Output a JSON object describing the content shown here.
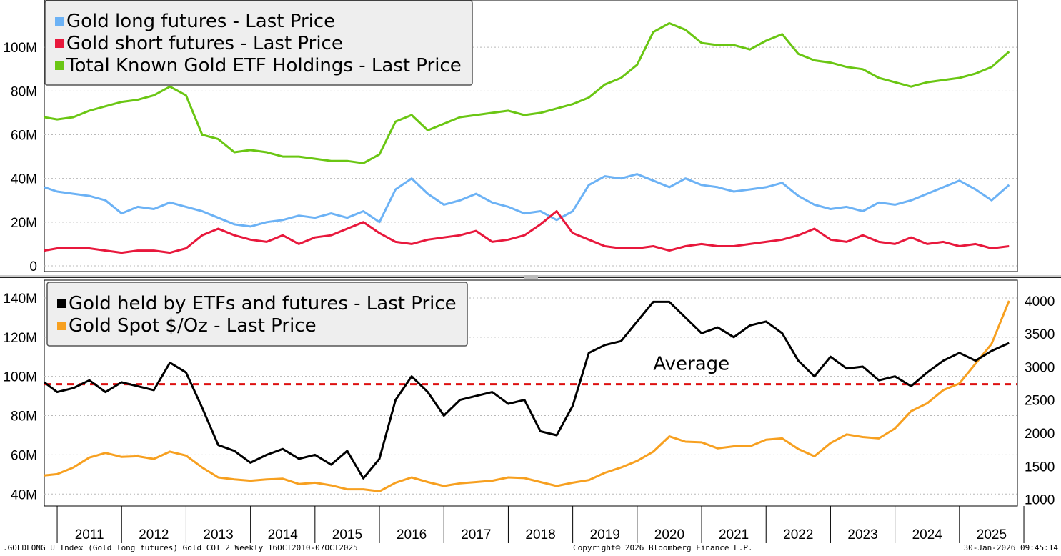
{
  "footer": {
    "left": ".GOLDLONG U Index (Gold long futures) Gold COT 2 Weekly 16OCT2010-07OCT2025",
    "center": "Copyright© 2026 Bloomberg Finance L.P.",
    "right": "30-Jan-2026 09:45:14"
  },
  "years": [
    "2011",
    "2012",
    "2013",
    "2014",
    "2015",
    "2016",
    "2017",
    "2018",
    "2019",
    "2020",
    "2021",
    "2022",
    "2023",
    "2024",
    "2025"
  ],
  "colors": {
    "long": "#6cb2f5",
    "short": "#e8183c",
    "etf": "#6ac613",
    "total": "#000000",
    "spot": "#f7a020",
    "avg": "#dd1111"
  },
  "chart_data": [
    {
      "type": "line",
      "title": "",
      "xlabel": "",
      "ylabel": "",
      "ylim": [
        0,
        120
      ],
      "y_unit": "M",
      "yticks": [
        "0",
        "20M",
        "40M",
        "60M",
        "80M",
        "100M"
      ],
      "legend_position": "top-left",
      "x": [
        2010.8,
        2011.0,
        2011.25,
        2011.5,
        2011.75,
        2012.0,
        2012.25,
        2012.5,
        2012.75,
        2013.0,
        2013.25,
        2013.5,
        2013.75,
        2014.0,
        2014.25,
        2014.5,
        2014.75,
        2015.0,
        2015.25,
        2015.5,
        2015.75,
        2016.0,
        2016.25,
        2016.5,
        2016.75,
        2017.0,
        2017.25,
        2017.5,
        2017.75,
        2018.0,
        2018.25,
        2018.5,
        2018.75,
        2019.0,
        2019.25,
        2019.5,
        2019.75,
        2020.0,
        2020.25,
        2020.5,
        2020.75,
        2021.0,
        2021.25,
        2021.5,
        2021.75,
        2022.0,
        2022.25,
        2022.5,
        2022.75,
        2023.0,
        2023.25,
        2023.5,
        2023.75,
        2024.0,
        2024.25,
        2024.5,
        2024.75,
        2025.0,
        2025.25,
        2025.5,
        2025.77
      ],
      "series": [
        {
          "name": "Gold long futures - Last Price",
          "color": "#6cb2f5",
          "values": [
            36,
            34,
            33,
            32,
            30,
            24,
            27,
            26,
            29,
            27,
            25,
            22,
            19,
            18,
            20,
            21,
            23,
            22,
            24,
            22,
            25,
            20,
            35,
            40,
            33,
            28,
            30,
            33,
            29,
            27,
            24,
            25,
            21,
            25,
            37,
            41,
            40,
            42,
            39,
            36,
            40,
            37,
            36,
            34,
            35,
            36,
            38,
            32,
            28,
            26,
            27,
            25,
            29,
            28,
            30,
            33,
            36,
            39,
            35,
            30,
            37
          ]
        },
        {
          "name": "Gold short futures - Last Price",
          "color": "#e8183c",
          "values": [
            7,
            8,
            8,
            8,
            7,
            6,
            7,
            7,
            6,
            8,
            14,
            17,
            14,
            12,
            11,
            14,
            10,
            13,
            14,
            17,
            20,
            15,
            11,
            10,
            12,
            13,
            14,
            16,
            11,
            12,
            14,
            19,
            25,
            15,
            12,
            9,
            8,
            8,
            9,
            7,
            9,
            10,
            9,
            9,
            10,
            11,
            12,
            14,
            17,
            12,
            11,
            14,
            11,
            10,
            13,
            10,
            11,
            9,
            10,
            8,
            9
          ]
        },
        {
          "name": "Total Known Gold ETF Holdings - Last Price",
          "color": "#6ac613",
          "values": [
            68,
            67,
            68,
            71,
            73,
            75,
            76,
            78,
            82,
            78,
            60,
            58,
            52,
            53,
            52,
            50,
            50,
            49,
            48,
            48,
            47,
            51,
            66,
            69,
            62,
            65,
            68,
            69,
            70,
            71,
            69,
            70,
            72,
            74,
            77,
            83,
            86,
            92,
            107,
            111,
            108,
            102,
            101,
            101,
            99,
            103,
            106,
            97,
            94,
            93,
            91,
            90,
            86,
            84,
            82,
            84,
            85,
            86,
            88,
            91,
            98
          ]
        }
      ]
    },
    {
      "type": "line",
      "title": "",
      "xlabel": "",
      "ylabel": "",
      "ylim": [
        35,
        148
      ],
      "y_unit": "M",
      "yticks": [
        "40M",
        "60M",
        "80M",
        "100M",
        "120M",
        "140M"
      ],
      "y2lim": [
        930,
        4280
      ],
      "y2ticks": [
        "1000",
        "1500",
        "2000",
        "2500",
        "3000",
        "3500",
        "4000"
      ],
      "legend_position": "top-left",
      "annotation": "Average",
      "average_value": 96,
      "x": [
        2010.8,
        2011.0,
        2011.25,
        2011.5,
        2011.75,
        2012.0,
        2012.25,
        2012.5,
        2012.75,
        2013.0,
        2013.25,
        2013.5,
        2013.75,
        2014.0,
        2014.25,
        2014.5,
        2014.75,
        2015.0,
        2015.25,
        2015.5,
        2015.75,
        2016.0,
        2016.25,
        2016.5,
        2016.75,
        2017.0,
        2017.25,
        2017.5,
        2017.75,
        2018.0,
        2018.25,
        2018.5,
        2018.75,
        2019.0,
        2019.25,
        2019.5,
        2019.75,
        2020.0,
        2020.25,
        2020.5,
        2020.75,
        2021.0,
        2021.25,
        2021.5,
        2021.75,
        2022.0,
        2022.25,
        2022.5,
        2022.75,
        2023.0,
        2023.25,
        2023.5,
        2023.75,
        2024.0,
        2024.25,
        2024.5,
        2024.75,
        2025.0,
        2025.25,
        2025.5,
        2025.77
      ],
      "series": [
        {
          "name": "Gold held by ETFs and futures - Last Price",
          "axis": "left",
          "color": "#000000",
          "values": [
            97,
            92,
            94,
            98,
            92,
            97,
            95,
            93,
            107,
            102,
            84,
            65,
            62,
            56,
            60,
            63,
            58,
            60,
            55,
            62,
            48,
            58,
            88,
            100,
            92,
            80,
            88,
            90,
            92,
            86,
            88,
            72,
            70,
            85,
            112,
            116,
            118,
            128,
            138,
            138,
            130,
            122,
            125,
            120,
            126,
            128,
            122,
            108,
            100,
            110,
            104,
            105,
            98,
            100,
            95,
            102,
            108,
            112,
            108,
            113,
            117
          ]
        },
        {
          "name": "Gold Spot $/Oz - Last Price",
          "axis": "right",
          "color": "#f7a020",
          "values": [
            1360,
            1380,
            1480,
            1630,
            1700,
            1640,
            1650,
            1610,
            1720,
            1660,
            1480,
            1330,
            1300,
            1280,
            1300,
            1310,
            1230,
            1250,
            1210,
            1150,
            1150,
            1120,
            1250,
            1330,
            1260,
            1200,
            1240,
            1260,
            1280,
            1330,
            1320,
            1260,
            1200,
            1250,
            1290,
            1400,
            1480,
            1580,
            1720,
            1950,
            1870,
            1860,
            1770,
            1800,
            1800,
            1900,
            1920,
            1760,
            1650,
            1850,
            1980,
            1940,
            1920,
            2070,
            2330,
            2450,
            2650,
            2750,
            3050,
            3350,
            4000
          ]
        }
      ]
    }
  ]
}
